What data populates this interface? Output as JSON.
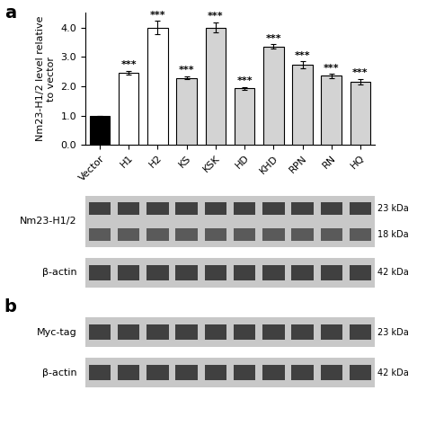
{
  "chart_data": {
    "type": "bar",
    "categories": [
      "Vector",
      "H1",
      "H2",
      "KS",
      "KSK",
      "HD",
      "KHD",
      "RPN",
      "RN",
      "HQ"
    ],
    "values": [
      1.0,
      2.45,
      4.0,
      2.28,
      4.0,
      1.92,
      3.35,
      2.72,
      2.35,
      2.15
    ],
    "errors": [
      0.0,
      0.07,
      0.22,
      0.05,
      0.18,
      0.05,
      0.07,
      0.12,
      0.07,
      0.1
    ],
    "colors": [
      "black",
      "white",
      "white",
      "lightgray",
      "lightgray",
      "lightgray",
      "lightgray",
      "lightgray",
      "lightgray",
      "lightgray"
    ],
    "y_label": "Nm23-H1/2 level relative\nto vector",
    "ylim": [
      0.0,
      4.5
    ],
    "yticks": [
      0.0,
      1.0,
      2.0,
      3.0,
      4.0
    ],
    "grid": false,
    "annotations": [
      {
        "category": "H1",
        "text": "***"
      },
      {
        "category": "H2",
        "text": "***"
      },
      {
        "category": "KS",
        "text": "***"
      },
      {
        "category": "KSK",
        "text": "***"
      },
      {
        "category": "HD",
        "text": "***"
      },
      {
        "category": "KHD",
        "text": "***"
      },
      {
        "category": "RPN",
        "text": "***"
      },
      {
        "category": "RN",
        "text": "***"
      },
      {
        "category": "HQ",
        "text": "***"
      }
    ],
    "panels": [
      {
        "label": "a",
        "blots": [
          {
            "name": "Nm23-H1/2",
            "bands": [
              "23 kDa",
              "18 kDa"
            ]
          },
          {
            "name": "β-actin",
            "bands": [
              "42 kDa"
            ]
          }
        ]
      },
      {
        "label": "b",
        "blots": [
          {
            "name": "Myc-tag",
            "bands": [
              "23 kDa"
            ]
          },
          {
            "name": "β-actin",
            "bands": [
              "42 kDa"
            ]
          }
        ]
      }
    ]
  }
}
